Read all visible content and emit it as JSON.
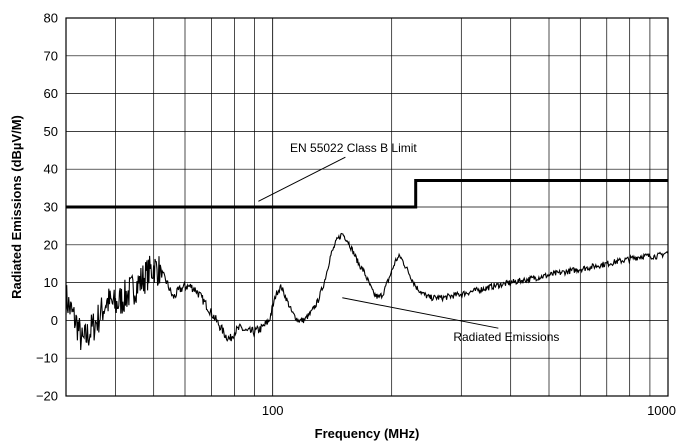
{
  "chart_data": {
    "type": "line",
    "xlabel": "Frequency (MHz)",
    "ylabel": "Radiated Emissions (dBµV/M)",
    "xscale": "log",
    "xlim": [
      30,
      1000
    ],
    "ylim": [
      -20,
      80
    ],
    "x_ticks": [
      100,
      1000
    ],
    "x_tick_labels": [
      "100",
      "1000"
    ],
    "y_ticks": [
      -20,
      -10,
      0,
      10,
      20,
      30,
      40,
      50,
      60,
      70,
      80
    ],
    "y_tick_labels": [
      "−20",
      "−10",
      "0",
      "10",
      "20",
      "30",
      "40",
      "50",
      "60",
      "70",
      "80"
    ],
    "grid": true,
    "series": [
      {
        "name": "EN 55022 Class B Limit",
        "color": "#000000",
        "step": true,
        "x": [
          30,
          230,
          230,
          1000
        ],
        "y": [
          30,
          30,
          37,
          37
        ]
      },
      {
        "name": "Radiated Emissions",
        "color": "#000000",
        "noisy": true,
        "x": [
          30,
          31,
          32,
          33,
          34,
          35,
          36,
          38,
          40,
          42,
          44,
          46,
          48,
          50,
          52,
          54,
          56,
          58,
          60,
          62,
          64,
          66,
          68,
          70,
          72,
          74,
          76,
          78,
          80,
          83,
          86,
          90,
          94,
          98,
          102,
          105,
          108,
          112,
          116,
          120,
          125,
          130,
          135,
          140,
          145,
          150,
          155,
          160,
          165,
          170,
          175,
          180,
          185,
          190,
          195,
          200,
          205,
          210,
          215,
          220,
          230,
          240,
          250,
          270,
          300,
          330,
          360,
          400,
          450,
          500,
          560,
          630,
          700,
          780,
          860,
          940,
          1000
        ],
        "y": [
          6,
          2,
          -1,
          -6,
          -4,
          -2,
          0,
          5,
          4,
          6,
          8,
          10,
          12,
          14,
          13,
          10,
          6,
          8,
          9,
          9,
          8,
          6,
          4,
          2,
          0,
          -2,
          -4,
          -5,
          -3,
          -2,
          -3,
          -3,
          -2,
          0,
          7,
          9,
          6,
          2,
          0,
          0,
          2,
          5,
          10,
          17,
          21,
          23,
          21,
          18,
          15,
          13,
          10,
          7,
          6,
          7,
          10,
          13,
          16,
          17,
          15,
          13,
          9,
          7,
          6,
          6,
          7,
          8,
          9,
          10,
          11,
          12,
          13,
          14,
          15,
          16,
          17,
          17,
          18
        ]
      }
    ],
    "annotations": [
      {
        "text": "EN 55022 Class B Limit",
        "x": 160,
        "y": 44.5,
        "pointer_x": 92,
        "pointer_y": 31.5
      },
      {
        "text": "Radiated Emissions",
        "x": 390,
        "y": -5.5,
        "pointer_x": 150,
        "pointer_y": 6
      }
    ]
  }
}
